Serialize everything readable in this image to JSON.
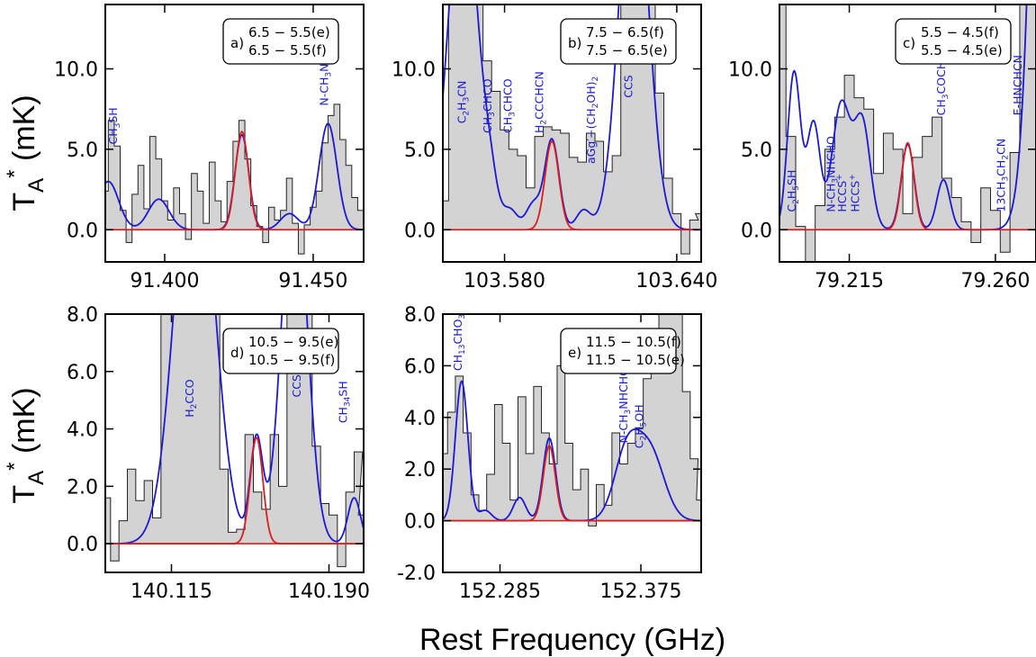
{
  "figure": {
    "xlabel": "Rest Frequency (GHz)",
    "ylabel_top": "T*A (mK)",
    "ylabel_bottom": "T*A (mK)"
  },
  "colors": {
    "observed_fill": "#d3d3d3",
    "observed_line": "#222222",
    "model_total": "#1a1ad6",
    "model_species": "#dd1c1c",
    "baseline": "#dd1c1c"
  },
  "chart_data": [
    {
      "type": "line",
      "panel": "a",
      "transition_lines": [
        "6.5 − 5.5(e)",
        "6.5 − 5.5(f)"
      ],
      "xlim": [
        91.38,
        91.467
      ],
      "ylim": [
        -2.0,
        14.0
      ],
      "xticks": [
        91.4,
        91.45
      ],
      "xtick_labels": [
        "91.400",
        "91.450"
      ],
      "yticks": [
        0.0,
        5.0,
        10.0
      ],
      "ytick_labels": [
        "0.0",
        "5.0",
        "10.0"
      ],
      "species_labels": [
        {
          "text": "CH3SH",
          "x": 91.384,
          "y": 5.3
        },
        {
          "text": "N-CH3NHCHO",
          "x": 91.455,
          "y": 7.7
        }
      ],
      "observed": {
        "x": [
          91.38,
          91.382,
          91.384,
          91.386,
          91.388,
          91.39,
          91.392,
          91.394,
          91.396,
          91.398,
          91.4,
          91.402,
          91.404,
          91.406,
          91.408,
          91.41,
          91.412,
          91.414,
          91.416,
          91.418,
          91.42,
          91.422,
          91.424,
          91.426,
          91.428,
          91.43,
          91.432,
          91.434,
          91.436,
          91.438,
          91.44,
          91.442,
          91.444,
          91.446,
          91.448,
          91.45,
          91.452,
          91.454,
          91.456,
          91.458,
          91.46,
          91.462,
          91.464,
          91.466
        ],
        "y": [
          2.4,
          6.8,
          5.2,
          1.2,
          -0.8,
          2.2,
          4.0,
          1.3,
          5.8,
          4.4,
          1.8,
          0.6,
          2.6,
          1.0,
          -0.6,
          3.5,
          2.4,
          0.4,
          4.2,
          1.8,
          0.5,
          3.0,
          5.5,
          6.8,
          4.4,
          1.5,
          0.2,
          -0.8,
          1.4,
          0.6,
          1.2,
          3.2,
          0.4,
          -1.5,
          0.3,
          1.4,
          2.4,
          5.4,
          7.1,
          7.8,
          5.6,
          4.0,
          2.0,
          1.2
        ]
      },
      "model_total": {
        "baseline": 0.0,
        "components": [
          {
            "center": 91.381,
            "amp": 3.0,
            "sigma": 0.0035
          },
          {
            "center": 91.398,
            "amp": 1.9,
            "sigma": 0.0035
          },
          {
            "center": 91.426,
            "amp": 5.9,
            "sigma": 0.0023
          },
          {
            "center": 91.442,
            "amp": 1.0,
            "sigma": 0.003
          },
          {
            "center": 91.455,
            "amp": 6.6,
            "sigma": 0.003
          }
        ]
      },
      "model_species": {
        "baseline": 0.0,
        "components": [
          {
            "center": 91.426,
            "amp": 6.1,
            "sigma": 0.0022
          }
        ]
      }
    },
    {
      "type": "line",
      "panel": "b",
      "transition_lines": [
        "7.5 − 6.5(f)",
        "7.5 − 6.5(e)"
      ],
      "xlim": [
        103.5585,
        103.6485
      ],
      "ylim": [
        -2.0,
        14.0
      ],
      "xticks": [
        103.58,
        103.64
      ],
      "xtick_labels": [
        "103.580",
        "103.640"
      ],
      "yticks": [
        0.0,
        5.0,
        10.0
      ],
      "ytick_labels": [
        "0.0",
        "5.0",
        "10.0"
      ],
      "species_labels": [
        {
          "text": "C2H3CN",
          "x": 103.5665,
          "y": 6.6
        },
        {
          "text": "CH3CHCO",
          "x": 103.5755,
          "y": 6.0
        },
        {
          "text": "CH3CHCO",
          "x": 103.5825,
          "y": 6.0
        },
        {
          "text": "H2CCCHCN",
          "x": 103.5935,
          "y": 6.0
        },
        {
          "text": "aGg′−(CH2OH)2",
          "x": 103.6115,
          "y": 4.1
        },
        {
          "text": "CCS",
          "x": 103.6245,
          "y": 8.2
        }
      ],
      "observed": {
        "x": [
          103.559,
          103.562,
          103.565,
          103.568,
          103.571,
          103.574,
          103.577,
          103.58,
          103.583,
          103.586,
          103.589,
          103.592,
          103.595,
          103.598,
          103.601,
          103.604,
          103.607,
          103.61,
          103.613,
          103.616,
          103.619,
          103.622,
          103.625,
          103.628,
          103.631,
          103.634,
          103.637,
          103.64,
          103.643,
          103.646,
          103.648
        ],
        "y": [
          1.8,
          14.0,
          14.0,
          14.0,
          14.0,
          10.5,
          8.6,
          6.2,
          5.0,
          4.6,
          2.6,
          5.8,
          6.4,
          6.2,
          6.0,
          4.5,
          4.2,
          6.0,
          5.5,
          3.6,
          4.6,
          14.0,
          14.0,
          14.0,
          14.0,
          8.5,
          3.2,
          1.0,
          -1.5,
          0.6,
          1.0
        ]
      },
      "model_total": {
        "baseline": 0.0,
        "components": [
          {
            "center": 103.5655,
            "amp": 22.0,
            "sigma": 0.005
          },
          {
            "center": 103.575,
            "amp": 2.2,
            "sigma": 0.0025
          },
          {
            "center": 103.582,
            "amp": 1.2,
            "sigma": 0.0025
          },
          {
            "center": 103.59,
            "amp": 1.6,
            "sigma": 0.0025
          },
          {
            "center": 103.5965,
            "amp": 5.6,
            "sigma": 0.0025
          },
          {
            "center": 103.6075,
            "amp": 1.2,
            "sigma": 0.0025
          },
          {
            "center": 103.625,
            "amp": 24.0,
            "sigma": 0.005
          }
        ]
      },
      "model_species": {
        "baseline": 0.0,
        "components": [
          {
            "center": 103.5965,
            "amp": 5.5,
            "sigma": 0.0024
          }
        ]
      }
    },
    {
      "type": "line",
      "panel": "c",
      "transition_lines": [
        "5.5 − 4.5(f)",
        "5.5 − 4.5(e)"
      ],
      "xlim": [
        79.1935,
        79.2725
      ],
      "ylim": [
        -2.0,
        14.0
      ],
      "xticks": [
        79.215,
        79.26
      ],
      "xtick_labels": [
        "79.215",
        "79.260"
      ],
      "yticks": [
        0.0,
        5.0,
        10.0
      ],
      "ytick_labels": [
        "0.0",
        "5.0",
        "10.0"
      ],
      "species_labels": [
        {
          "text": "C2H5SH",
          "x": 79.1985,
          "y": 1.1
        },
        {
          "text": "N-CH3NHCHO",
          "x": 79.2105,
          "y": 1.1
        },
        {
          "text": "HCCS+",
          "x": 79.214,
          "y": 1.1
        },
        {
          "text": "HCCS+",
          "x": 79.218,
          "y": 1.1
        },
        {
          "text": "CH3COCH3",
          "x": 79.2445,
          "y": 7.1
        },
        {
          "text": "13CH3CH2CN",
          "x": 79.263,
          "y": 1.1
        },
        {
          "text": "E-HNCHCN",
          "x": 79.268,
          "y": 7.1
        }
      ],
      "observed": {
        "x": [
          79.194,
          79.197,
          79.2,
          79.203,
          79.206,
          79.209,
          79.212,
          79.215,
          79.218,
          79.221,
          79.224,
          79.227,
          79.23,
          79.233,
          79.236,
          79.239,
          79.242,
          79.245,
          79.248,
          79.251,
          79.254,
          79.257,
          79.26,
          79.263,
          79.266,
          79.269,
          79.272
        ],
        "y": [
          14.0,
          5.8,
          0.2,
          -2.0,
          1.5,
          5.0,
          7.0,
          9.6,
          8.2,
          7.5,
          3.5,
          6.0,
          5.0,
          1.0,
          4.5,
          5.8,
          7.0,
          3.2,
          2.0,
          0.5,
          -0.8,
          2.6,
          1.2,
          -1.4,
          4.8,
          14.0,
          14.0
        ]
      },
      "model_total": {
        "baseline": 0.0,
        "components": [
          {
            "center": 79.198,
            "amp": 9.8,
            "sigma": 0.002
          },
          {
            "center": 79.204,
            "amp": 6.6,
            "sigma": 0.002
          },
          {
            "center": 79.2125,
            "amp": 7.8,
            "sigma": 0.0028
          },
          {
            "center": 79.219,
            "amp": 6.6,
            "sigma": 0.0025
          },
          {
            "center": 79.233,
            "amp": 5.3,
            "sigma": 0.002
          },
          {
            "center": 79.244,
            "amp": 3.1,
            "sigma": 0.002
          },
          {
            "center": 79.278,
            "amp": 80.0,
            "sigma": 0.0045
          }
        ]
      },
      "model_species": {
        "baseline": 0.0,
        "components": [
          {
            "center": 79.233,
            "amp": 5.4,
            "sigma": 0.0019
          }
        ]
      }
    },
    {
      "type": "line",
      "panel": "d",
      "transition_lines": [
        "10.5 − 9.5(e)",
        "10.5 − 9.5(f)"
      ],
      "xlim": [
        140.0835,
        140.2065
      ],
      "ylim": [
        -1.0,
        8.0
      ],
      "xticks": [
        140.115,
        140.19
      ],
      "xtick_labels": [
        "140.115",
        "140.190"
      ],
      "yticks": [
        0.0,
        2.0,
        4.0,
        6.0,
        8.0
      ],
      "ytick_labels": [
        "0.0",
        "2.0",
        "4.0",
        "6.0",
        "8.0"
      ],
      "species_labels": [
        {
          "text": "H2CCO",
          "x": 140.1255,
          "y": 4.4
        },
        {
          "text": "CCS",
          "x": 140.1765,
          "y": 5.1
        },
        {
          "text": "CH34SH",
          "x": 140.1985,
          "y": 4.2
        }
      ],
      "observed": {
        "x": [
          140.084,
          140.088,
          140.092,
          140.096,
          140.1,
          140.104,
          140.108,
          140.112,
          140.116,
          140.12,
          140.124,
          140.128,
          140.132,
          140.136,
          140.14,
          140.144,
          140.148,
          140.152,
          140.156,
          140.16,
          140.164,
          140.168,
          140.172,
          140.176,
          140.18,
          140.184,
          140.188,
          140.192,
          140.196,
          140.2,
          140.204,
          140.206
        ],
        "y": [
          1.6,
          -0.6,
          0.8,
          2.6,
          1.5,
          2.2,
          0.9,
          8.0,
          8.0,
          8.0,
          8.0,
          8.0,
          8.0,
          8.0,
          2.6,
          0.4,
          0.5,
          3.8,
          1.8,
          1.2,
          3.8,
          2.0,
          8.0,
          8.0,
          8.0,
          3.4,
          1.4,
          1.0,
          -0.8,
          1.8,
          3.2,
          1.0
        ]
      },
      "model_total": {
        "baseline": 0.0,
        "components": [
          {
            "center": 140.126,
            "amp": 15.0,
            "sigma": 0.009
          },
          {
            "center": 140.1555,
            "amp": 3.6,
            "sigma": 0.003
          },
          {
            "center": 140.1735,
            "amp": 13.0,
            "sigma": 0.006
          },
          {
            "center": 140.202,
            "amp": 1.6,
            "sigma": 0.003
          }
        ]
      },
      "model_species": {
        "baseline": 0.0,
        "components": [
          {
            "center": 140.1555,
            "amp": 3.7,
            "sigma": 0.003
          }
        ]
      }
    },
    {
      "type": "line",
      "panel": "e",
      "transition_lines": [
        "11.5 − 10.5(f)",
        "11.5 − 10.5(e)"
      ],
      "xlim": [
        152.2485,
        152.4135
      ],
      "ylim": [
        -2.0,
        8.0
      ],
      "xticks": [
        152.285,
        152.375
      ],
      "xtick_labels": [
        "152.285",
        "152.375"
      ],
      "yticks": [
        -2.0,
        0.0,
        2.0,
        4.0,
        6.0,
        8.0
      ],
      "ytick_labels": [
        "-2.0",
        "0.0",
        "2.0",
        "4.0",
        "6.0",
        "8.0"
      ],
      "species_labels": [
        {
          "text": "CH13CHO3",
          "x": 152.2605,
          "y": 5.8
        },
        {
          "text": "N-CH3NHCHO",
          "x": 152.3665,
          "y": 3.0
        },
        {
          "text": "C2H5OH",
          "x": 152.3765,
          "y": 2.8
        }
      ],
      "observed": {
        "x": [
          152.249,
          152.254,
          152.259,
          152.264,
          152.269,
          152.274,
          152.279,
          152.284,
          152.289,
          152.294,
          152.299,
          152.304,
          152.309,
          152.314,
          152.319,
          152.324,
          152.329,
          152.334,
          152.339,
          152.344,
          152.349,
          152.354,
          152.359,
          152.364,
          152.369,
          152.374,
          152.379,
          152.384,
          152.389,
          152.394,
          152.399,
          152.404,
          152.409,
          152.413
        ],
        "y": [
          2.6,
          4.2,
          5.6,
          3.4,
          1.0,
          0.4,
          1.8,
          4.5,
          3.0,
          0.8,
          4.8,
          2.6,
          5.2,
          3.4,
          2.2,
          6.0,
          3.0,
          1.2,
          2.0,
          -0.2,
          1.4,
          0.6,
          3.4,
          2.2,
          3.0,
          3.6,
          5.5,
          7.0,
          8.0,
          8.0,
          8.0,
          5.0,
          2.4,
          0.8
        ]
      },
      "model_total": {
        "baseline": 0.0,
        "components": [
          {
            "center": 152.2605,
            "amp": 5.4,
            "sigma": 0.004
          },
          {
            "center": 152.2755,
            "amp": 0.4,
            "sigma": 0.004
          },
          {
            "center": 152.2975,
            "amp": 0.9,
            "sigma": 0.004
          },
          {
            "center": 152.3165,
            "amp": 3.2,
            "sigma": 0.004
          },
          {
            "center": 152.366,
            "amp": 2.6,
            "sigma": 0.008
          },
          {
            "center": 152.381,
            "amp": 2.6,
            "sigma": 0.009
          }
        ]
      },
      "model_species": {
        "baseline": 0.0,
        "components": [
          {
            "center": 152.3165,
            "amp": 2.9,
            "sigma": 0.0038
          }
        ]
      }
    }
  ]
}
